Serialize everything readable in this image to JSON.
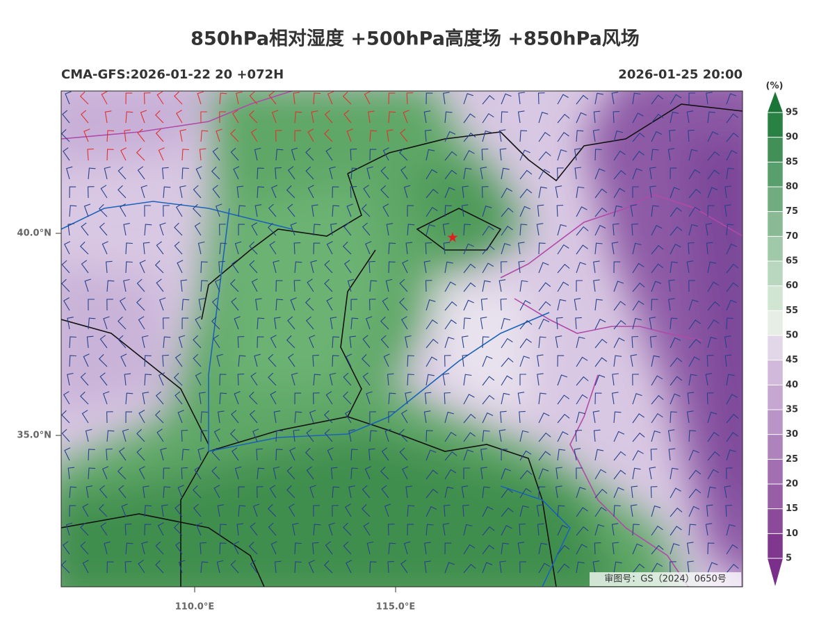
{
  "header": {
    "title": "850hPa相对湿度 +500hPa高度场 +850hPa风场",
    "model": "CMA-GFS:2026-01-22 20 +072H",
    "valid_time": "2026-01-25 20:00"
  },
  "colorbar": {
    "unit": "(%)",
    "levels": [
      5,
      10,
      15,
      20,
      25,
      30,
      35,
      40,
      45,
      50,
      55,
      60,
      65,
      70,
      75,
      80,
      85,
      90,
      95
    ]
  },
  "map": {
    "lat_labels": [
      "40.0°N",
      "35.0°N"
    ],
    "lon_labels": [
      "110.0°E",
      "115.0°E"
    ],
    "approval": "审图号：GS（2024）0650号"
  }
}
